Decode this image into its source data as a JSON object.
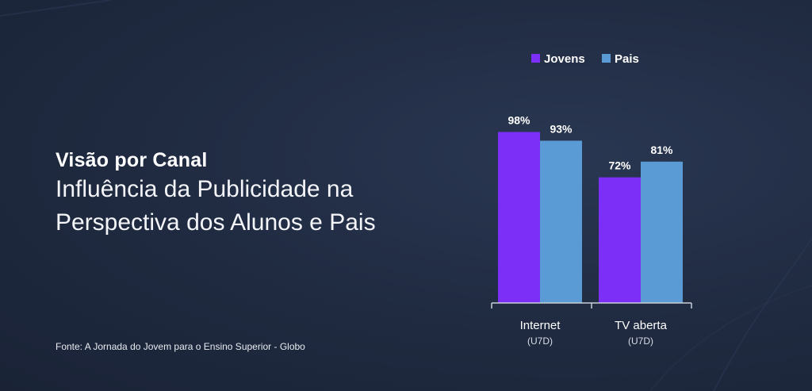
{
  "heading": "Visão por Canal",
  "subtitle_line1": "Influência da Publicidade na",
  "subtitle_line2": "Perspectiva dos Alunos e Pais",
  "source": "Fonte: A Jornada do Jovem para o Ensino Superior - Globo",
  "chart_data": {
    "type": "bar",
    "categories": [
      "Internet",
      "TV aberta"
    ],
    "category_sublabels": [
      "(U7D)",
      "(U7D)"
    ],
    "series": [
      {
        "name": "Jovens",
        "values": [
          98,
          72
        ],
        "labels": [
          "98%",
          "72%"
        ],
        "color": "#7b2ff7"
      },
      {
        "name": "Pais",
        "values": [
          93,
          81
        ],
        "labels": [
          "93%",
          "81%"
        ],
        "color": "#5b9bd5"
      }
    ],
    "ylim": [
      0,
      100
    ],
    "legend_position": "top",
    "grid": false
  }
}
